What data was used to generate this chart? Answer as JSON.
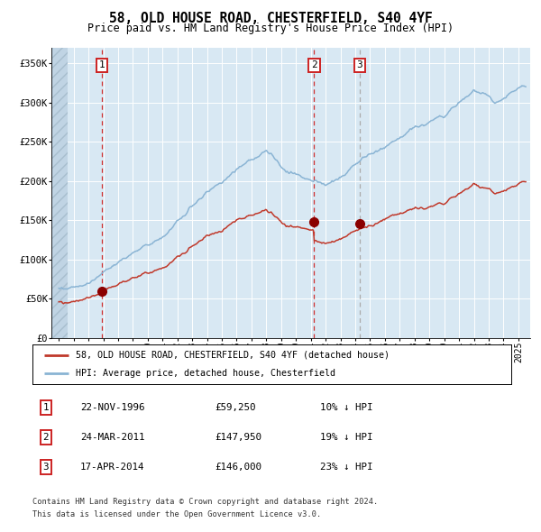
{
  "title": "58, OLD HOUSE ROAD, CHESTERFIELD, S40 4YF",
  "subtitle": "Price paid vs. HM Land Registry's House Price Index (HPI)",
  "ylim": [
    0,
    370000
  ],
  "xlim_start": 1993.5,
  "xlim_end": 2025.8,
  "hpi_color": "#8ab4d4",
  "price_color": "#c0392b",
  "marker_color": "#8b0000",
  "bg_plot": "#d8e8f3",
  "transactions": [
    {
      "label": "1",
      "date_year": 1996.9,
      "price": 59250,
      "vline_red": true
    },
    {
      "label": "2",
      "date_year": 2011.23,
      "price": 147950,
      "vline_red": true
    },
    {
      "label": "3",
      "date_year": 2014.3,
      "price": 146000,
      "vline_red": false
    }
  ],
  "legend_entries": [
    "58, OLD HOUSE ROAD, CHESTERFIELD, S40 4YF (detached house)",
    "HPI: Average price, detached house, Chesterfield"
  ],
  "table_rows": [
    {
      "num": "1",
      "date": "22-NOV-1996",
      "price": "£59,250",
      "hpi": "10% ↓ HPI"
    },
    {
      "num": "2",
      "date": "24-MAR-2011",
      "price": "£147,950",
      "hpi": "19% ↓ HPI"
    },
    {
      "num": "3",
      "date": "17-APR-2014",
      "price": "£146,000",
      "hpi": "23% ↓ HPI"
    }
  ],
  "footnote1": "Contains HM Land Registry data © Crown copyright and database right 2024.",
  "footnote2": "This data is licensed under the Open Government Licence v3.0.",
  "xticks": [
    1994,
    1995,
    1996,
    1997,
    1998,
    1999,
    2000,
    2001,
    2002,
    2003,
    2004,
    2005,
    2006,
    2007,
    2008,
    2009,
    2010,
    2011,
    2012,
    2013,
    2014,
    2015,
    2016,
    2017,
    2018,
    2019,
    2020,
    2021,
    2022,
    2023,
    2024,
    2025
  ]
}
